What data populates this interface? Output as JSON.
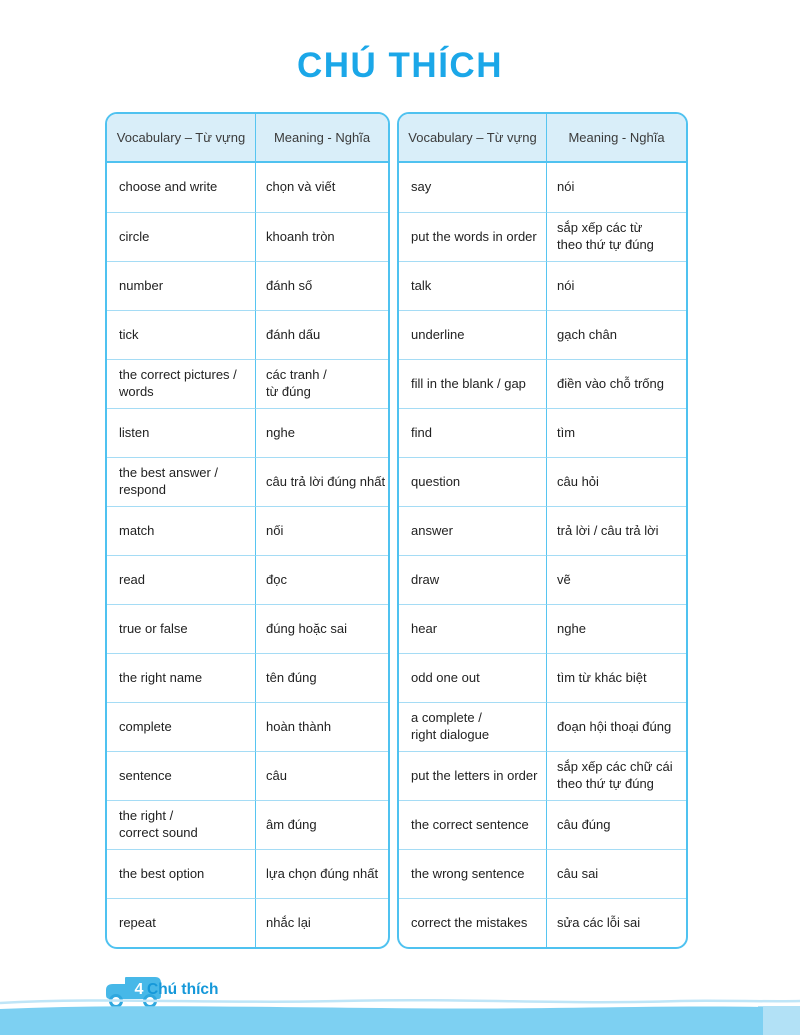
{
  "page": {
    "title": "CHÚ THÍCH",
    "footer": {
      "page_number": "4",
      "label": "Chú thích"
    },
    "colors": {
      "title_blue": "#1BA7E8",
      "table_border": "#4FC2F0",
      "header_bg": "#D9EEF9",
      "grid_line": "#A5DCF5",
      "column_divider": "#57C5F1",
      "wave_blue": "#7DD0F2",
      "wave_light": "#B2E1F6",
      "footer_blue": "#1598D9",
      "bus_blue": "#47B8E8"
    }
  },
  "table": {
    "headers": [
      "Vocabulary – Từ vựng",
      "Meaning - Nghĩa",
      "Vocabulary – Từ vựng",
      "Meaning - Nghĩa"
    ],
    "left_rows": [
      [
        "choose and write",
        "chọn và viết"
      ],
      [
        "circle",
        "khoanh tròn"
      ],
      [
        "number",
        "đánh số"
      ],
      [
        "tick",
        "đánh dấu"
      ],
      [
        "the correct pictures /\nwords",
        "các tranh /\ntừ đúng"
      ],
      [
        "listen",
        "nghe"
      ],
      [
        "the best answer /\nrespond",
        "câu trả lời đúng nhất"
      ],
      [
        "match",
        "nối"
      ],
      [
        "read",
        "đọc"
      ],
      [
        "true or false",
        "đúng hoặc sai"
      ],
      [
        "the right name",
        "tên đúng"
      ],
      [
        "complete",
        "hoàn thành"
      ],
      [
        "sentence",
        "câu"
      ],
      [
        "the right /\ncorrect sound",
        "âm đúng"
      ],
      [
        "the best option",
        "lựa chọn đúng nhất"
      ],
      [
        "repeat",
        "nhắc lại"
      ]
    ],
    "right_rows": [
      [
        "say",
        "nói"
      ],
      [
        "put the words in order",
        "sắp xếp các từ\ntheo thứ tự đúng"
      ],
      [
        "talk",
        "nói"
      ],
      [
        "underline",
        "gạch chân"
      ],
      [
        "fill in the blank / gap",
        "điền vào chỗ trống"
      ],
      [
        "find",
        "tìm"
      ],
      [
        "question",
        "câu hỏi"
      ],
      [
        "answer",
        "trả lời / câu trả lời"
      ],
      [
        "draw",
        "vẽ"
      ],
      [
        "hear",
        "nghe"
      ],
      [
        "odd one out",
        "tìm từ khác biệt"
      ],
      [
        "a complete /\nright dialogue",
        "đoạn hội thoại đúng"
      ],
      [
        "put the letters in order",
        "sắp xếp các chữ cái\ntheo thứ tự đúng"
      ],
      [
        "the correct sentence",
        "câu đúng"
      ],
      [
        "the wrong sentence",
        "câu sai"
      ],
      [
        "correct the mistakes",
        "sửa các lỗi sai"
      ]
    ]
  }
}
